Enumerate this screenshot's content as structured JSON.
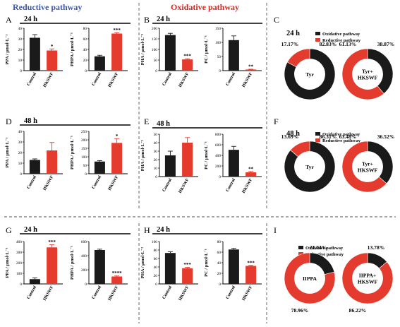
{
  "headers": {
    "reductive": "Reductive pathway",
    "oxidative": "Oxidative pathway",
    "reductive_color": "#3c59a8",
    "oxidative_color": "#e0241b"
  },
  "colors": {
    "control": "#1a1a1a",
    "treatment": "#e53a2e"
  },
  "panel_letters": [
    "A",
    "B",
    "C",
    "D",
    "E",
    "F",
    "G",
    "H",
    "I"
  ],
  "time_labels": [
    "24 h",
    "24 h",
    "24 h",
    "48 h",
    "48 h",
    "48 h",
    "24 h",
    "24 h"
  ],
  "legend": {
    "oxidative": "Oxidative pathway",
    "reductive": "Reductive pathway"
  },
  "chart_data": [
    {
      "id": "A1",
      "type": "bar",
      "categories": [
        "Control",
        "HKSWF"
      ],
      "values": [
        31,
        19
      ],
      "errors": [
        3,
        1.5
      ],
      "ylabel": "PPA / μmol·L⁻¹",
      "ylim": [
        0,
        40
      ],
      "yticks": [
        0,
        10,
        20,
        30,
        40
      ],
      "sig": [
        "",
        "*"
      ]
    },
    {
      "id": "A2",
      "type": "bar",
      "categories": [
        "Control",
        "HKSWF"
      ],
      "values": [
        27,
        70
      ],
      "errors": [
        2,
        1.5
      ],
      "ylabel": "PHPA / μmol·L⁻¹",
      "ylim": [
        0,
        80
      ],
      "yticks": [
        0,
        20,
        40,
        60,
        80
      ],
      "sig": [
        "",
        "***"
      ]
    },
    {
      "id": "B1",
      "type": "bar",
      "categories": [
        "Control",
        "HKSWF"
      ],
      "values": [
        168,
        53
      ],
      "errors": [
        8,
        3
      ],
      "ylabel": "PHA / μmol·L⁻¹",
      "ylim": [
        0,
        200
      ],
      "yticks": [
        0,
        50,
        100,
        150,
        200
      ],
      "sig": [
        "",
        "***"
      ]
    },
    {
      "id": "B2",
      "type": "bar",
      "categories": [
        "Control",
        "HKSWF"
      ],
      "values": [
        108,
        4
      ],
      "errors": [
        15,
        1
      ],
      "ylabel": "PC / μmol·L⁻¹",
      "ylim": [
        0,
        150
      ],
      "yticks": [
        0,
        50,
        100,
        150
      ],
      "sig": [
        "",
        "**"
      ]
    },
    {
      "id": "D1",
      "type": "bar",
      "categories": [
        "Control",
        "HKSWF"
      ],
      "values": [
        13,
        22
      ],
      "errors": [
        1,
        7.5
      ],
      "ylabel": "PPA / μmol·L⁻¹",
      "ylim": [
        0,
        40
      ],
      "yticks": [
        0,
        10,
        20,
        30,
        40
      ],
      "sig": [
        "",
        ""
      ]
    },
    {
      "id": "D2",
      "type": "bar",
      "categories": [
        "Control",
        "HKSWF"
      ],
      "values": [
        72,
        182
      ],
      "errors": [
        5,
        25
      ],
      "ylabel": "PHPA / μmol·L⁻¹",
      "ylim": [
        0,
        250
      ],
      "yticks": [
        0,
        50,
        100,
        150,
        200,
        250
      ],
      "sig": [
        "",
        "*"
      ]
    },
    {
      "id": "E1",
      "type": "bar",
      "categories": [
        "Control",
        "HKSWF"
      ],
      "values": [
        25,
        40
      ],
      "errors": [
        5,
        6
      ],
      "ylabel": "PHA / μmol·L⁻¹",
      "ylim": [
        0,
        50
      ],
      "yticks": [
        0,
        10,
        20,
        30,
        40,
        50
      ],
      "sig": [
        "",
        ""
      ]
    },
    {
      "id": "E2",
      "type": "bar",
      "categories": [
        "Control",
        "HKSWF"
      ],
      "values": [
        505,
        80
      ],
      "errors": [
        65,
        15
      ],
      "ylabel": "PC / μmol·L⁻¹",
      "ylim": [
        0,
        800
      ],
      "yticks": [
        0,
        200,
        400,
        600,
        800
      ],
      "sig": [
        "",
        "**"
      ]
    },
    {
      "id": "G1",
      "type": "bar",
      "categories": [
        "Control",
        "HKSWF"
      ],
      "values": [
        45,
        345
      ],
      "errors": [
        12,
        25
      ],
      "ylabel": "PPA / μmol·L⁻¹",
      "ylim": [
        0,
        400
      ],
      "yticks": [
        0,
        100,
        200,
        300,
        400
      ],
      "sig": [
        "",
        "***"
      ]
    },
    {
      "id": "G2",
      "type": "bar",
      "categories": [
        "Control",
        "HKSWF"
      ],
      "values": [
        480,
        105
      ],
      "errors": [
        12,
        8
      ],
      "ylabel": "PHPA / μmol·L⁻¹",
      "ylim": [
        0,
        600
      ],
      "yticks": [
        0,
        200,
        400,
        600
      ],
      "sig": [
        "",
        "****"
      ]
    },
    {
      "id": "H1",
      "type": "bar",
      "categories": [
        "Control",
        "HKSWF"
      ],
      "values": [
        73,
        37
      ],
      "errors": [
        3,
        2
      ],
      "ylabel": "PHA / μmol·L⁻¹",
      "ylim": [
        0,
        100
      ],
      "yticks": [
        0,
        20,
        40,
        60,
        80,
        100
      ],
      "sig": [
        "",
        "***"
      ]
    },
    {
      "id": "H2",
      "type": "bar",
      "categories": [
        "Control",
        "HKSWF"
      ],
      "values": [
        65,
        34
      ],
      "errors": [
        2,
        1
      ],
      "ylabel": "PC / μmol·L⁻¹",
      "ylim": [
        0,
        80
      ],
      "yticks": [
        0,
        20,
        40,
        60,
        80
      ],
      "sig": [
        "",
        "***"
      ]
    },
    {
      "id": "C1",
      "type": "pie",
      "center": "Tyr",
      "labels": [
        "Oxidative pathway",
        "Reductive pathway"
      ],
      "values": [
        82.83,
        17.17
      ],
      "labels_text": [
        "82.83%",
        "17.17%"
      ]
    },
    {
      "id": "C2",
      "type": "pie",
      "center": "Tyr+\nHKSWF",
      "labels": [
        "Oxidative pathway",
        "Reductive pathway"
      ],
      "values": [
        38.87,
        61.13
      ],
      "labels_text": [
        "38.87%",
        "61.13%"
      ]
    },
    {
      "id": "F1",
      "type": "pie",
      "center": "Tyr",
      "labels": [
        "Oxidative pathway",
        "Reductive pathway"
      ],
      "values": [
        86.31,
        13.69
      ],
      "labels_text": [
        "86.31%",
        "13.69%"
      ]
    },
    {
      "id": "F2",
      "type": "pie",
      "center": "Tyr+\nHKSWF",
      "labels": [
        "Oxidative pathway",
        "Reductive pathway"
      ],
      "values": [
        36.52,
        63.48
      ],
      "labels_text": [
        "36.52%",
        "63.48%"
      ]
    },
    {
      "id": "I1",
      "type": "pie",
      "center": "IIPPA",
      "labels": [
        "Oxidative pathway",
        "Reductive pathway"
      ],
      "values": [
        21.04,
        78.96
      ],
      "labels_text": [
        "21.04%",
        "78.96%"
      ]
    },
    {
      "id": "I2",
      "type": "pie",
      "center": "IIPPA+\nHKSWF",
      "labels": [
        "Oxidative pathway",
        "Reductive pathway"
      ],
      "values": [
        13.78,
        86.22
      ],
      "labels_text": [
        "13.78%",
        "86.22%"
      ]
    }
  ]
}
